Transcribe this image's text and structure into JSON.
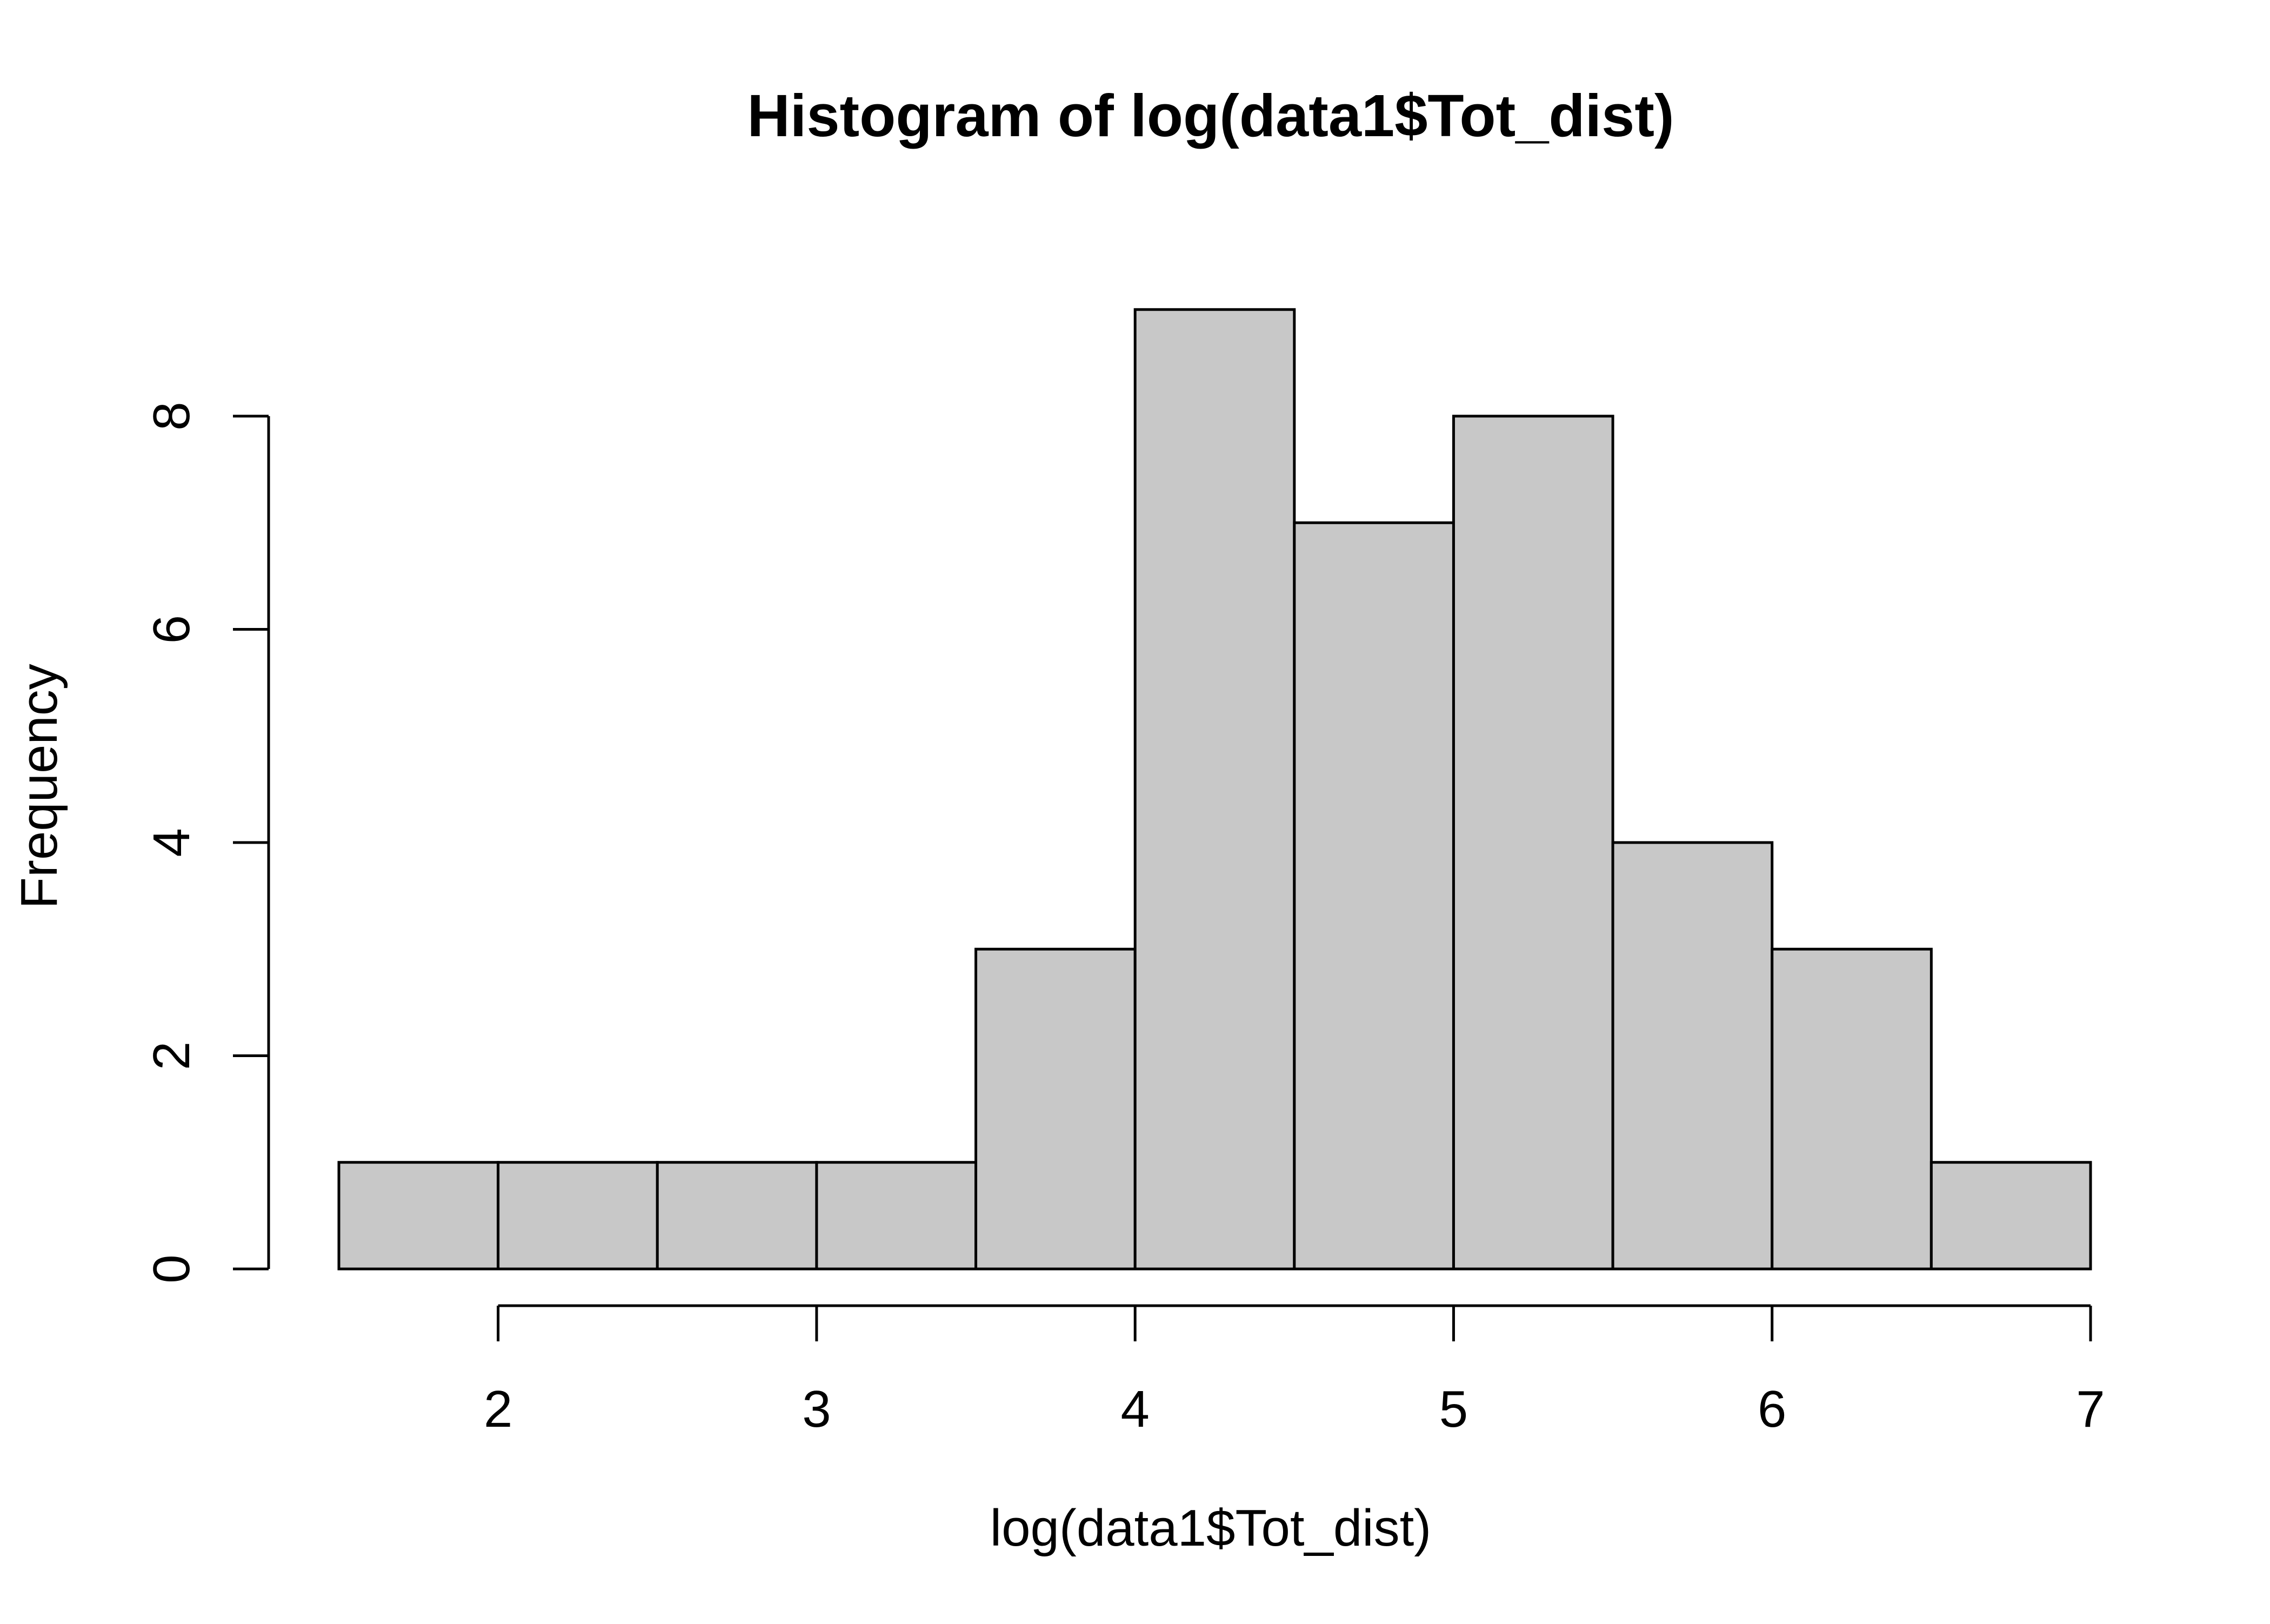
{
  "chart_data": {
    "type": "bar",
    "title": "Histogram of log(data1$Tot_dist)",
    "xlabel": "log(data1$Tot_dist)",
    "ylabel": "Frequency",
    "bins": [
      {
        "start": 1.5,
        "end": 2.0,
        "count": 1
      },
      {
        "start": 2.0,
        "end": 2.5,
        "count": 1
      },
      {
        "start": 2.5,
        "end": 3.0,
        "count": 1
      },
      {
        "start": 3.0,
        "end": 3.5,
        "count": 1
      },
      {
        "start": 3.5,
        "end": 4.0,
        "count": 3
      },
      {
        "start": 4.0,
        "end": 4.5,
        "count": 9
      },
      {
        "start": 4.5,
        "end": 5.0,
        "count": 7
      },
      {
        "start": 5.0,
        "end": 5.5,
        "count": 8
      },
      {
        "start": 5.5,
        "end": 6.0,
        "count": 4
      },
      {
        "start": 6.0,
        "end": 6.5,
        "count": 3
      },
      {
        "start": 6.5,
        "end": 7.0,
        "count": 1
      }
    ],
    "x_ticks": [
      "2",
      "3",
      "4",
      "5",
      "6",
      "7"
    ],
    "y_ticks": [
      "0",
      "2",
      "4",
      "6",
      "8"
    ],
    "xlim": [
      1.5,
      7.0
    ],
    "ylim": [
      0,
      9
    ],
    "grid": false,
    "bar_fill": "#c8c8c8",
    "bar_stroke": "#000000"
  }
}
